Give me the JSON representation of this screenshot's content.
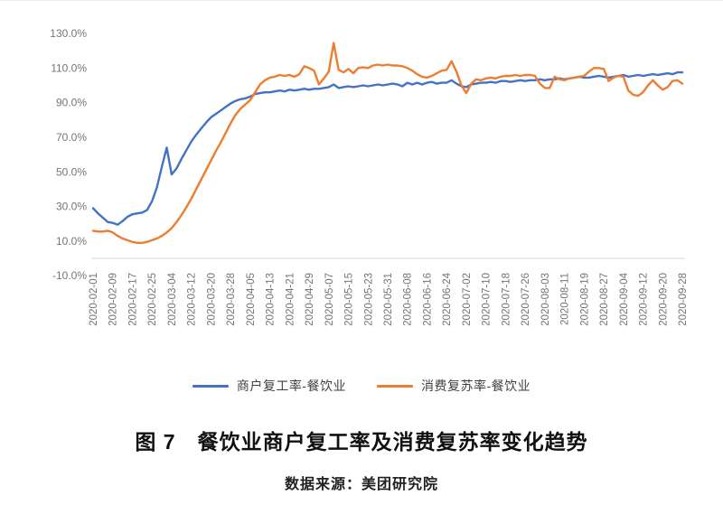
{
  "figure": {
    "title": "图 7　餐饮业商户复工率及消费复苏率变化趋势",
    "source": "数据来源：美团研究院"
  },
  "colors": {
    "axis_line": "#d9d9d9",
    "tick_text": "#757575",
    "legend_text": "#3f3f3f",
    "series_blue": "#4472c4",
    "series_orange": "#ed7d31"
  },
  "chart_data": {
    "type": "line",
    "title": "图 7　餐饮业商户复工率及消费复苏率变化趋势",
    "grid": false,
    "legend_position": "bottom",
    "y_axis": {
      "unit": "%",
      "min": -10,
      "max": 130,
      "step": 20,
      "tick_values": [
        130,
        110,
        90,
        70,
        50,
        30,
        10,
        -10
      ],
      "tick_labels": [
        "130.0%",
        "110.0%",
        "90.0%",
        "70.0%",
        "50.0%",
        "30.0%",
        "10.0%",
        "-10.0%"
      ]
    },
    "x_axis": {
      "start": "2020-02-01",
      "end": "2020-09-28",
      "days_total": 240,
      "tick_labels": [
        "2020-02-01",
        "2020-02-09",
        "2020-02-17",
        "2020-02-25",
        "2020-03-04",
        "2020-03-12",
        "2020-03-20",
        "2020-03-28",
        "2020-04-05",
        "2020-04-13",
        "2020-04-21",
        "2020-04-29",
        "2020-05-07",
        "2020-05-15",
        "2020-05-23",
        "2020-05-31",
        "2020-06-08",
        "2020-06-16",
        "2020-06-24",
        "2020-07-02",
        "2020-07-10",
        "2020-07-18",
        "2020-07-26",
        "2020-08-03",
        "2020-08-11",
        "2020-08-19",
        "2020-08-27",
        "2020-09-04",
        "2020-09-12",
        "2020-09-20",
        "2020-09-28"
      ]
    },
    "series": [
      {
        "id": "merchant-reopen-rate",
        "name": "商户复工率-餐饮业",
        "color": "#4472c4",
        "points": [
          [
            "2020-02-01",
            29
          ],
          [
            "2020-02-03",
            26
          ],
          [
            "2020-02-05",
            23.5
          ],
          [
            "2020-02-07",
            21
          ],
          [
            "2020-02-09",
            20.5
          ],
          [
            "2020-02-11",
            19.5
          ],
          [
            "2020-02-13",
            21.5
          ],
          [
            "2020-02-15",
            24
          ],
          [
            "2020-02-17",
            25.5
          ],
          [
            "2020-02-19",
            26
          ],
          [
            "2020-02-21",
            26.5
          ],
          [
            "2020-02-23",
            28
          ],
          [
            "2020-02-25",
            33
          ],
          [
            "2020-02-27",
            41
          ],
          [
            "2020-02-29",
            53
          ],
          [
            "2020-03-02",
            64
          ],
          [
            "2020-03-04",
            48.5
          ],
          [
            "2020-03-06",
            52
          ],
          [
            "2020-03-08",
            57.5
          ],
          [
            "2020-03-10",
            62.5
          ],
          [
            "2020-03-12",
            67.5
          ],
          [
            "2020-03-14",
            71.5
          ],
          [
            "2020-03-16",
            75
          ],
          [
            "2020-03-18",
            78.5
          ],
          [
            "2020-03-20",
            81.5
          ],
          [
            "2020-03-22",
            83.5
          ],
          [
            "2020-03-24",
            85.5
          ],
          [
            "2020-03-26",
            87.5
          ],
          [
            "2020-03-28",
            89.5
          ],
          [
            "2020-03-30",
            91
          ],
          [
            "2020-04-01",
            92
          ],
          [
            "2020-04-03",
            92.5
          ],
          [
            "2020-04-05",
            93.5
          ],
          [
            "2020-04-07",
            95
          ],
          [
            "2020-04-09",
            95.5
          ],
          [
            "2020-04-11",
            96
          ],
          [
            "2020-04-13",
            96
          ],
          [
            "2020-04-15",
            96.5
          ],
          [
            "2020-04-17",
            97
          ],
          [
            "2020-04-19",
            96.5
          ],
          [
            "2020-04-21",
            97.5
          ],
          [
            "2020-04-23",
            97
          ],
          [
            "2020-04-25",
            97.5
          ],
          [
            "2020-04-27",
            98
          ],
          [
            "2020-04-29",
            97.5
          ],
          [
            "2020-05-01",
            98
          ],
          [
            "2020-05-03",
            98
          ],
          [
            "2020-05-05",
            98.5
          ],
          [
            "2020-05-07",
            99
          ],
          [
            "2020-05-09",
            100.5
          ],
          [
            "2020-05-11",
            98.5
          ],
          [
            "2020-05-13",
            99
          ],
          [
            "2020-05-15",
            99.5
          ],
          [
            "2020-05-17",
            99
          ],
          [
            "2020-05-19",
            99.5
          ],
          [
            "2020-05-21",
            100
          ],
          [
            "2020-05-23",
            99.5
          ],
          [
            "2020-05-25",
            100
          ],
          [
            "2020-05-27",
            100.5
          ],
          [
            "2020-05-29",
            100
          ],
          [
            "2020-05-31",
            100.5
          ],
          [
            "2020-06-02",
            101
          ],
          [
            "2020-06-04",
            100.5
          ],
          [
            "2020-06-06",
            99.5
          ],
          [
            "2020-06-08",
            101.5
          ],
          [
            "2020-06-10",
            100.5
          ],
          [
            "2020-06-12",
            101.5
          ],
          [
            "2020-06-14",
            100.5
          ],
          [
            "2020-06-16",
            101.5
          ],
          [
            "2020-06-18",
            102
          ],
          [
            "2020-06-20",
            101
          ],
          [
            "2020-06-22",
            101.5
          ],
          [
            "2020-06-24",
            101.5
          ],
          [
            "2020-06-26",
            103
          ],
          [
            "2020-06-28",
            101
          ],
          [
            "2020-06-30",
            99.5
          ],
          [
            "2020-07-02",
            99
          ],
          [
            "2020-07-04",
            100.5
          ],
          [
            "2020-07-06",
            101
          ],
          [
            "2020-07-08",
            101.5
          ],
          [
            "2020-07-10",
            101.5
          ],
          [
            "2020-07-12",
            102
          ],
          [
            "2020-07-14",
            101.5
          ],
          [
            "2020-07-16",
            102.5
          ],
          [
            "2020-07-18",
            102.5
          ],
          [
            "2020-07-20",
            102
          ],
          [
            "2020-07-22",
            102.5
          ],
          [
            "2020-07-24",
            103
          ],
          [
            "2020-07-26",
            102.5
          ],
          [
            "2020-07-28",
            103
          ],
          [
            "2020-07-30",
            103
          ],
          [
            "2020-08-01",
            103.5
          ],
          [
            "2020-08-03",
            103
          ],
          [
            "2020-08-05",
            103.5
          ],
          [
            "2020-08-07",
            103.5
          ],
          [
            "2020-08-09",
            104
          ],
          [
            "2020-08-11",
            103.5
          ],
          [
            "2020-08-13",
            104
          ],
          [
            "2020-08-15",
            104.5
          ],
          [
            "2020-08-17",
            105
          ],
          [
            "2020-08-19",
            104.5
          ],
          [
            "2020-08-21",
            104.5
          ],
          [
            "2020-08-23",
            105
          ],
          [
            "2020-08-25",
            105.5
          ],
          [
            "2020-08-27",
            105
          ],
          [
            "2020-08-29",
            104.5
          ],
          [
            "2020-08-31",
            105
          ],
          [
            "2020-09-02",
            105.5
          ],
          [
            "2020-09-04",
            106
          ],
          [
            "2020-09-06",
            105
          ],
          [
            "2020-09-08",
            105.5
          ],
          [
            "2020-09-10",
            106
          ],
          [
            "2020-09-12",
            105.5
          ],
          [
            "2020-09-14",
            106
          ],
          [
            "2020-09-16",
            106.5
          ],
          [
            "2020-09-18",
            106
          ],
          [
            "2020-09-20",
            106.5
          ],
          [
            "2020-09-22",
            107
          ],
          [
            "2020-09-24",
            106.5
          ],
          [
            "2020-09-26",
            107.5
          ],
          [
            "2020-09-28",
            107.5
          ]
        ]
      },
      {
        "id": "consumption-recovery-rate",
        "name": "消费复苏率-餐饮业",
        "color": "#ed7d31",
        "points": [
          [
            "2020-02-01",
            16
          ],
          [
            "2020-02-03",
            15.5
          ],
          [
            "2020-02-05",
            15.5
          ],
          [
            "2020-02-07",
            16
          ],
          [
            "2020-02-09",
            15
          ],
          [
            "2020-02-11",
            13
          ],
          [
            "2020-02-13",
            11.5
          ],
          [
            "2020-02-15",
            10.5
          ],
          [
            "2020-02-17",
            9.5
          ],
          [
            "2020-02-19",
            9
          ],
          [
            "2020-02-21",
            9
          ],
          [
            "2020-02-23",
            9.5
          ],
          [
            "2020-02-25",
            10.5
          ],
          [
            "2020-02-27",
            11.5
          ],
          [
            "2020-02-29",
            13
          ],
          [
            "2020-03-02",
            15
          ],
          [
            "2020-03-04",
            17.5
          ],
          [
            "2020-03-06",
            21
          ],
          [
            "2020-03-08",
            25
          ],
          [
            "2020-03-10",
            29.5
          ],
          [
            "2020-03-12",
            34.5
          ],
          [
            "2020-03-14",
            40
          ],
          [
            "2020-03-16",
            45.5
          ],
          [
            "2020-03-18",
            51
          ],
          [
            "2020-03-20",
            56.5
          ],
          [
            "2020-03-22",
            62
          ],
          [
            "2020-03-24",
            67
          ],
          [
            "2020-03-26",
            72.5
          ],
          [
            "2020-03-28",
            78
          ],
          [
            "2020-03-30",
            83
          ],
          [
            "2020-04-01",
            86.5
          ],
          [
            "2020-04-03",
            89
          ],
          [
            "2020-04-05",
            91.5
          ],
          [
            "2020-04-07",
            96
          ],
          [
            "2020-04-09",
            100.5
          ],
          [
            "2020-04-11",
            103
          ],
          [
            "2020-04-13",
            104.5
          ],
          [
            "2020-04-15",
            105
          ],
          [
            "2020-04-17",
            106
          ],
          [
            "2020-04-19",
            105.5
          ],
          [
            "2020-04-21",
            106
          ],
          [
            "2020-04-23",
            105
          ],
          [
            "2020-04-25",
            106.5
          ],
          [
            "2020-04-27",
            111
          ],
          [
            "2020-04-29",
            110
          ],
          [
            "2020-05-01",
            108.5
          ],
          [
            "2020-05-03",
            100.5
          ],
          [
            "2020-05-05",
            104
          ],
          [
            "2020-05-07",
            108
          ],
          [
            "2020-05-09",
            124.5
          ],
          [
            "2020-05-11",
            109
          ],
          [
            "2020-05-13",
            107.5
          ],
          [
            "2020-05-15",
            109.5
          ],
          [
            "2020-05-17",
            107
          ],
          [
            "2020-05-19",
            110
          ],
          [
            "2020-05-21",
            110.5
          ],
          [
            "2020-05-23",
            110
          ],
          [
            "2020-05-25",
            111.5
          ],
          [
            "2020-05-27",
            112
          ],
          [
            "2020-05-29",
            111.5
          ],
          [
            "2020-05-31",
            112
          ],
          [
            "2020-06-02",
            111.5
          ],
          [
            "2020-06-04",
            111.5
          ],
          [
            "2020-06-06",
            111
          ],
          [
            "2020-06-08",
            110
          ],
          [
            "2020-06-10",
            108.5
          ],
          [
            "2020-06-12",
            106.5
          ],
          [
            "2020-06-14",
            105
          ],
          [
            "2020-06-16",
            104.5
          ],
          [
            "2020-06-18",
            105.5
          ],
          [
            "2020-06-20",
            107
          ],
          [
            "2020-06-22",
            108.5
          ],
          [
            "2020-06-24",
            109
          ],
          [
            "2020-06-26",
            114
          ],
          [
            "2020-06-28",
            108
          ],
          [
            "2020-06-30",
            100
          ],
          [
            "2020-07-02",
            95.5
          ],
          [
            "2020-07-04",
            101
          ],
          [
            "2020-07-06",
            103.5
          ],
          [
            "2020-07-08",
            103
          ],
          [
            "2020-07-10",
            104
          ],
          [
            "2020-07-12",
            104.5
          ],
          [
            "2020-07-14",
            104
          ],
          [
            "2020-07-16",
            105
          ],
          [
            "2020-07-18",
            105.5
          ],
          [
            "2020-07-20",
            105.5
          ],
          [
            "2020-07-22",
            106
          ],
          [
            "2020-07-24",
            105.5
          ],
          [
            "2020-07-26",
            106
          ],
          [
            "2020-07-28",
            106
          ],
          [
            "2020-07-30",
            105.5
          ],
          [
            "2020-08-01",
            101
          ],
          [
            "2020-08-03",
            98.5
          ],
          [
            "2020-08-05",
            98.5
          ],
          [
            "2020-08-07",
            105
          ],
          [
            "2020-08-09",
            103.5
          ],
          [
            "2020-08-11",
            103
          ],
          [
            "2020-08-13",
            104
          ],
          [
            "2020-08-15",
            104.5
          ],
          [
            "2020-08-17",
            105
          ],
          [
            "2020-08-19",
            105.5
          ],
          [
            "2020-08-21",
            108
          ],
          [
            "2020-08-23",
            110
          ],
          [
            "2020-08-25",
            110
          ],
          [
            "2020-08-27",
            109.5
          ],
          [
            "2020-08-29",
            102.5
          ],
          [
            "2020-08-31",
            104.5
          ],
          [
            "2020-09-02",
            105.5
          ],
          [
            "2020-09-04",
            105
          ],
          [
            "2020-09-06",
            97
          ],
          [
            "2020-09-08",
            94.5
          ],
          [
            "2020-09-10",
            94
          ],
          [
            "2020-09-12",
            96
          ],
          [
            "2020-09-14",
            100
          ],
          [
            "2020-09-16",
            103
          ],
          [
            "2020-09-18",
            100
          ],
          [
            "2020-09-20",
            97.5
          ],
          [
            "2020-09-22",
            99
          ],
          [
            "2020-09-24",
            102.5
          ],
          [
            "2020-09-26",
            103
          ],
          [
            "2020-09-28",
            101
          ]
        ]
      }
    ]
  }
}
